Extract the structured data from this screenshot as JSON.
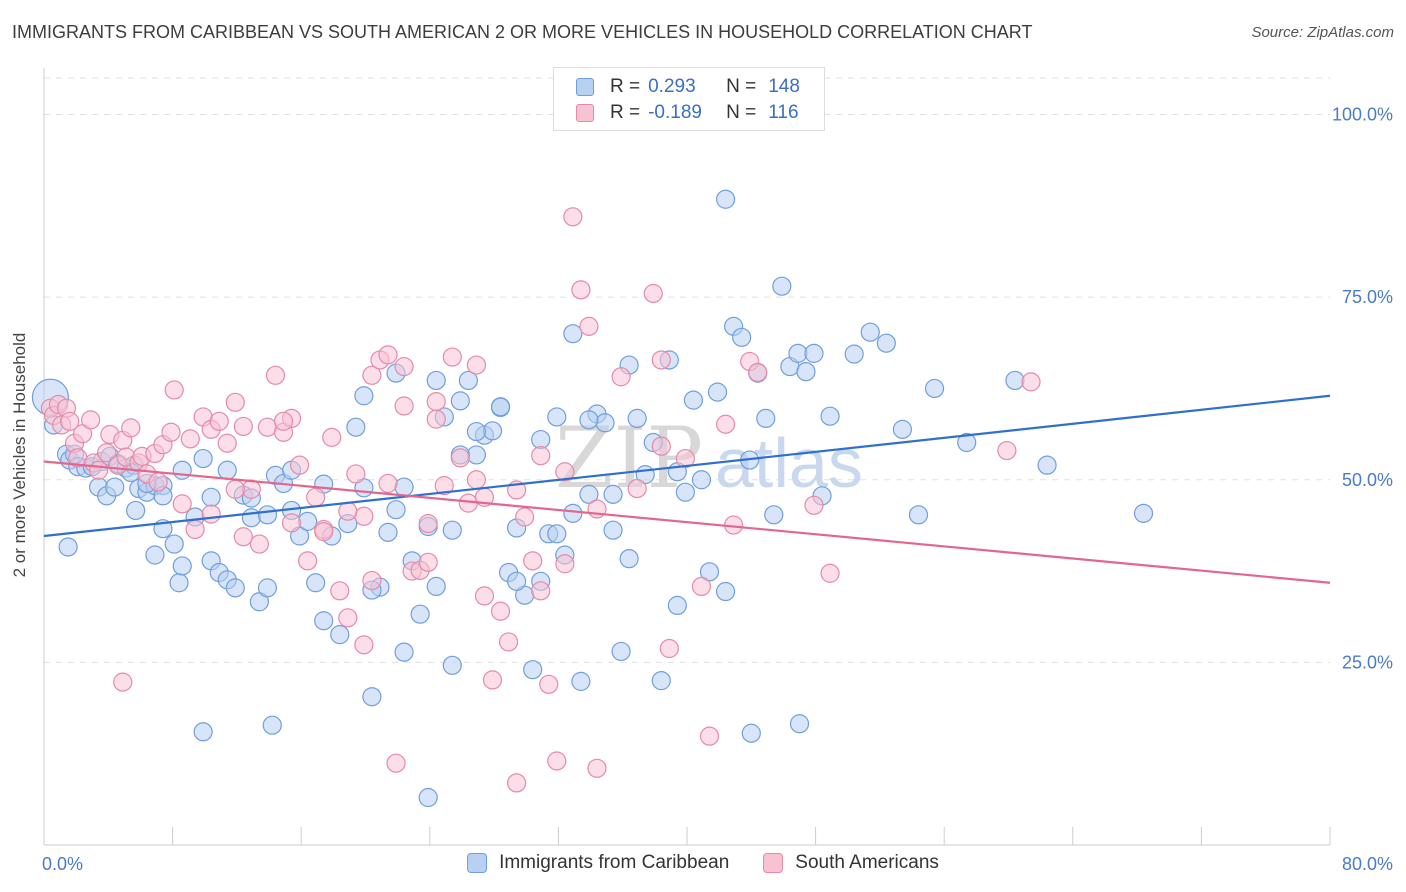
{
  "title": "IMMIGRANTS FROM CARIBBEAN VS SOUTH AMERICAN 2 OR MORE VEHICLES IN HOUSEHOLD CORRELATION CHART",
  "source": "Source: ZipAtlas.com",
  "watermark": {
    "zip": "ZIP",
    "atlas": "atlas"
  },
  "legend_top": {
    "rows": [
      {
        "r_label": "R =",
        "r_value": "0.293",
        "n_label": "N =",
        "n_value": "148"
      },
      {
        "r_label": "R =",
        "r_value": "-0.189",
        "n_label": "N =",
        "n_value": "116"
      }
    ]
  },
  "colors": {
    "blue_fill": "#b8d0f2",
    "blue_stroke": "#6f9fdc",
    "blue_line": "#2f6fd0",
    "pink_fill": "#f7c3d3",
    "pink_stroke": "#e68aa8",
    "pink_line": "#e2668e",
    "tick_text": "#4a7bc8",
    "grid": "#e0e0e0"
  },
  "chart_data": {
    "type": "scatter",
    "xlabel": "",
    "ylabel": "2 or more Vehicles in Household",
    "xlim": [
      0,
      80
    ],
    "ylim": [
      0,
      105
    ],
    "x_tick_labels": [
      "0.0%",
      "80.0%"
    ],
    "y_ticks": [
      25,
      50,
      75,
      100
    ],
    "y_tick_labels": [
      "25.0%",
      "50.0%",
      "75.0%",
      "100.0%"
    ],
    "grid": true,
    "legend_placement": "bottom-center",
    "series": [
      {
        "name": "Immigrants from Caribbean",
        "color": "#6f9fdc",
        "trend": {
          "x": [
            0,
            80
          ],
          "y": [
            42.3,
            61.5
          ]
        },
        "points": [
          [
            0.4,
            61.3
          ],
          [
            0.6,
            57.5
          ],
          [
            1.4,
            53.5
          ],
          [
            1.6,
            52.7
          ],
          [
            1.9,
            53.5
          ],
          [
            2.1,
            51.8
          ],
          [
            2.6,
            51.6
          ],
          [
            3.0,
            51.8
          ],
          [
            3.4,
            49.0
          ],
          [
            3.6,
            52.5
          ],
          [
            3.9,
            47.8
          ],
          [
            4.1,
            53.2
          ],
          [
            4.6,
            52.2
          ],
          [
            5.1,
            51.6
          ],
          [
            5.6,
            52.0
          ],
          [
            5.9,
            48.8
          ],
          [
            6.4,
            48.3
          ],
          [
            6.9,
            49.2
          ],
          [
            7.4,
            49.2
          ],
          [
            1.5,
            40.8
          ],
          [
            5.7,
            45.8
          ],
          [
            6.9,
            39.7
          ],
          [
            7.4,
            43.3
          ],
          [
            8.1,
            41.2
          ],
          [
            8.4,
            35.9
          ],
          [
            8.6,
            38.2
          ],
          [
            9.4,
            44.9
          ],
          [
            9.9,
            52.9
          ],
          [
            10.4,
            38.9
          ],
          [
            10.9,
            37.3
          ],
          [
            11.4,
            36.3
          ],
          [
            11.9,
            35.2
          ],
          [
            12.4,
            47.9
          ],
          [
            12.9,
            44.8
          ],
          [
            13.4,
            33.3
          ],
          [
            13.9,
            45.2
          ],
          [
            14.4,
            50.6
          ],
          [
            14.9,
            49.5
          ],
          [
            15.4,
            45.8
          ],
          [
            15.9,
            42.3
          ],
          [
            16.4,
            44.3
          ],
          [
            16.9,
            35.9
          ],
          [
            17.4,
            30.7
          ],
          [
            17.9,
            42.3
          ],
          [
            18.4,
            28.8
          ],
          [
            18.9,
            44.0
          ],
          [
            19.4,
            57.2
          ],
          [
            19.9,
            48.9
          ],
          [
            20.4,
            20.3
          ],
          [
            20.9,
            35.3
          ],
          [
            21.4,
            42.8
          ],
          [
            21.9,
            45.9
          ],
          [
            22.4,
            26.4
          ],
          [
            22.9,
            38.9
          ],
          [
            23.4,
            31.6
          ],
          [
            23.9,
            43.6
          ],
          [
            24.4,
            35.4
          ],
          [
            24.9,
            58.6
          ],
          [
            25.4,
            24.6
          ],
          [
            25.9,
            60.8
          ],
          [
            26.4,
            63.6
          ],
          [
            26.9,
            53.4
          ],
          [
            27.4,
            56.1
          ],
          [
            27.9,
            56.7
          ],
          [
            28.4,
            59.9
          ],
          [
            28.9,
            37.3
          ],
          [
            29.4,
            43.4
          ],
          [
            29.9,
            34.2
          ],
          [
            30.4,
            24.0
          ],
          [
            30.9,
            36.1
          ],
          [
            31.4,
            42.6
          ],
          [
            31.9,
            58.6
          ],
          [
            32.4,
            39.7
          ],
          [
            32.9,
            45.4
          ],
          [
            33.4,
            22.4
          ],
          [
            33.9,
            48.0
          ],
          [
            34.4,
            59.0
          ],
          [
            34.9,
            57.8
          ],
          [
            35.4,
            43.1
          ],
          [
            35.9,
            26.5
          ],
          [
            36.4,
            39.2
          ],
          [
            36.9,
            58.4
          ],
          [
            37.4,
            50.7
          ],
          [
            37.9,
            55.1
          ],
          [
            38.4,
            22.5
          ],
          [
            38.9,
            66.4
          ],
          [
            39.4,
            51.1
          ],
          [
            39.9,
            48.3
          ],
          [
            40.4,
            60.9
          ],
          [
            40.9,
            50.0
          ],
          [
            41.4,
            37.4
          ],
          [
            41.9,
            62.0
          ],
          [
            42.4,
            88.4
          ],
          [
            42.9,
            71.0
          ],
          [
            43.4,
            69.5
          ],
          [
            43.9,
            52.7
          ],
          [
            44.4,
            64.6
          ],
          [
            44.9,
            58.4
          ],
          [
            45.4,
            45.2
          ],
          [
            45.9,
            76.5
          ],
          [
            46.4,
            65.5
          ],
          [
            46.9,
            67.3
          ],
          [
            47.4,
            64.8
          ],
          [
            47.9,
            67.3
          ],
          [
            48.4,
            47.8
          ],
          [
            48.9,
            58.7
          ],
          [
            50.4,
            67.2
          ],
          [
            51.4,
            70.2
          ],
          [
            52.4,
            68.7
          ],
          [
            53.4,
            56.9
          ],
          [
            54.4,
            45.2
          ],
          [
            55.4,
            62.5
          ],
          [
            57.4,
            55.1
          ],
          [
            60.4,
            63.6
          ],
          [
            62.4,
            52.0
          ],
          [
            68.4,
            45.4
          ],
          [
            23.9,
            6.5
          ],
          [
            14.2,
            16.4
          ],
          [
            9.9,
            15.5
          ],
          [
            13.9,
            35.2
          ],
          [
            20.4,
            34.9
          ],
          [
            25.4,
            43.1
          ],
          [
            25.9,
            53.4
          ],
          [
            26.9,
            56.6
          ],
          [
            29.4,
            36.1
          ],
          [
            31.9,
            42.6
          ],
          [
            35.4,
            48.0
          ],
          [
            39.4,
            32.8
          ],
          [
            42.4,
            34.7
          ],
          [
            44.0,
            15.3
          ],
          [
            47.0,
            16.6
          ],
          [
            32.9,
            70.0
          ],
          [
            21.9,
            64.6
          ],
          [
            24.4,
            63.6
          ],
          [
            19.9,
            61.5
          ],
          [
            28.4,
            60.0
          ],
          [
            33.9,
            58.2
          ],
          [
            36.4,
            65.7
          ],
          [
            30.9,
            55.5
          ],
          [
            22.4,
            49.0
          ],
          [
            17.4,
            49.4
          ],
          [
            15.4,
            51.3
          ],
          [
            12.9,
            47.5
          ],
          [
            11.4,
            51.3
          ],
          [
            10.4,
            47.6
          ],
          [
            8.6,
            51.3
          ],
          [
            7.4,
            47.8
          ],
          [
            6.4,
            49.5
          ],
          [
            5.4,
            51.0
          ],
          [
            4.4,
            49.0
          ]
        ]
      },
      {
        "name": "South Americans",
        "color": "#e68aa8",
        "trend": {
          "x": [
            0,
            80
          ],
          "y": [
            52.5,
            35.9
          ]
        },
        "points": [
          [
            0.4,
            59.8
          ],
          [
            0.6,
            58.8
          ],
          [
            0.9,
            60.3
          ],
          [
            1.1,
            57.5
          ],
          [
            1.4,
            59.8
          ],
          [
            1.6,
            58.0
          ],
          [
            1.9,
            55.0
          ],
          [
            2.1,
            53.0
          ],
          [
            2.4,
            56.3
          ],
          [
            2.9,
            58.2
          ],
          [
            3.1,
            52.3
          ],
          [
            3.4,
            51.3
          ],
          [
            3.9,
            53.7
          ],
          [
            4.1,
            56.2
          ],
          [
            4.6,
            52.0
          ],
          [
            4.9,
            55.4
          ],
          [
            5.1,
            53.1
          ],
          [
            5.4,
            57.1
          ],
          [
            5.9,
            52.3
          ],
          [
            6.1,
            53.2
          ],
          [
            6.4,
            50.8
          ],
          [
            6.9,
            53.6
          ],
          [
            7.1,
            49.7
          ],
          [
            7.4,
            54.8
          ],
          [
            7.9,
            56.5
          ],
          [
            8.1,
            62.3
          ],
          [
            8.6,
            46.7
          ],
          [
            9.1,
            55.6
          ],
          [
            9.4,
            43.2
          ],
          [
            9.9,
            58.6
          ],
          [
            10.4,
            56.9
          ],
          [
            10.9,
            58.0
          ],
          [
            11.4,
            55.0
          ],
          [
            11.9,
            60.6
          ],
          [
            12.4,
            57.3
          ],
          [
            12.9,
            48.7
          ],
          [
            13.4,
            41.2
          ],
          [
            13.9,
            57.2
          ],
          [
            14.4,
            64.3
          ],
          [
            14.9,
            56.5
          ],
          [
            15.4,
            58.4
          ],
          [
            15.9,
            52.0
          ],
          [
            16.4,
            38.9
          ],
          [
            16.9,
            47.6
          ],
          [
            17.4,
            43.2
          ],
          [
            17.9,
            55.8
          ],
          [
            18.4,
            34.8
          ],
          [
            18.9,
            31.1
          ],
          [
            19.4,
            50.8
          ],
          [
            19.9,
            27.4
          ],
          [
            20.4,
            64.3
          ],
          [
            20.9,
            66.4
          ],
          [
            21.4,
            67.1
          ],
          [
            21.9,
            11.2
          ],
          [
            22.4,
            60.1
          ],
          [
            22.9,
            37.5
          ],
          [
            23.4,
            37.6
          ],
          [
            23.9,
            38.7
          ],
          [
            24.4,
            60.7
          ],
          [
            24.9,
            49.2
          ],
          [
            25.4,
            66.8
          ],
          [
            25.9,
            53.0
          ],
          [
            26.4,
            46.8
          ],
          [
            26.9,
            50.0
          ],
          [
            27.4,
            34.1
          ],
          [
            27.9,
            22.6
          ],
          [
            28.4,
            32.0
          ],
          [
            28.9,
            27.8
          ],
          [
            29.4,
            8.5
          ],
          [
            29.9,
            44.9
          ],
          [
            30.4,
            38.9
          ],
          [
            30.9,
            53.3
          ],
          [
            31.4,
            22.0
          ],
          [
            31.9,
            11.5
          ],
          [
            32.4,
            38.5
          ],
          [
            32.9,
            86.0
          ],
          [
            33.4,
            76.0
          ],
          [
            33.9,
            71.0
          ],
          [
            34.4,
            10.5
          ],
          [
            35.9,
            64.1
          ],
          [
            37.9,
            75.5
          ],
          [
            38.4,
            66.4
          ],
          [
            38.9,
            26.9
          ],
          [
            39.9,
            52.9
          ],
          [
            40.9,
            35.4
          ],
          [
            41.4,
            14.9
          ],
          [
            42.4,
            57.6
          ],
          [
            42.9,
            43.8
          ],
          [
            43.9,
            66.2
          ],
          [
            44.4,
            64.7
          ],
          [
            47.9,
            46.5
          ],
          [
            48.9,
            37.2
          ],
          [
            59.9,
            54.0
          ],
          [
            61.4,
            63.4
          ],
          [
            4.9,
            22.3
          ],
          [
            11.9,
            48.7
          ],
          [
            14.9,
            58.0
          ],
          [
            17.4,
            42.9
          ],
          [
            19.9,
            45.0
          ],
          [
            20.4,
            36.2
          ],
          [
            22.4,
            65.5
          ],
          [
            24.4,
            58.3
          ],
          [
            26.9,
            65.7
          ],
          [
            27.4,
            47.6
          ],
          [
            29.4,
            48.6
          ],
          [
            30.9,
            34.8
          ],
          [
            32.4,
            51.1
          ],
          [
            34.4,
            46.0
          ],
          [
            36.9,
            48.8
          ],
          [
            38.4,
            54.6
          ],
          [
            10.4,
            45.3
          ],
          [
            12.4,
            42.2
          ],
          [
            15.4,
            44.1
          ],
          [
            18.9,
            45.7
          ],
          [
            21.4,
            49.5
          ],
          [
            23.9,
            44.0
          ]
        ]
      }
    ]
  },
  "legend_bottom": {
    "items": [
      "Immigrants from Caribbean",
      "South Americans"
    ]
  }
}
